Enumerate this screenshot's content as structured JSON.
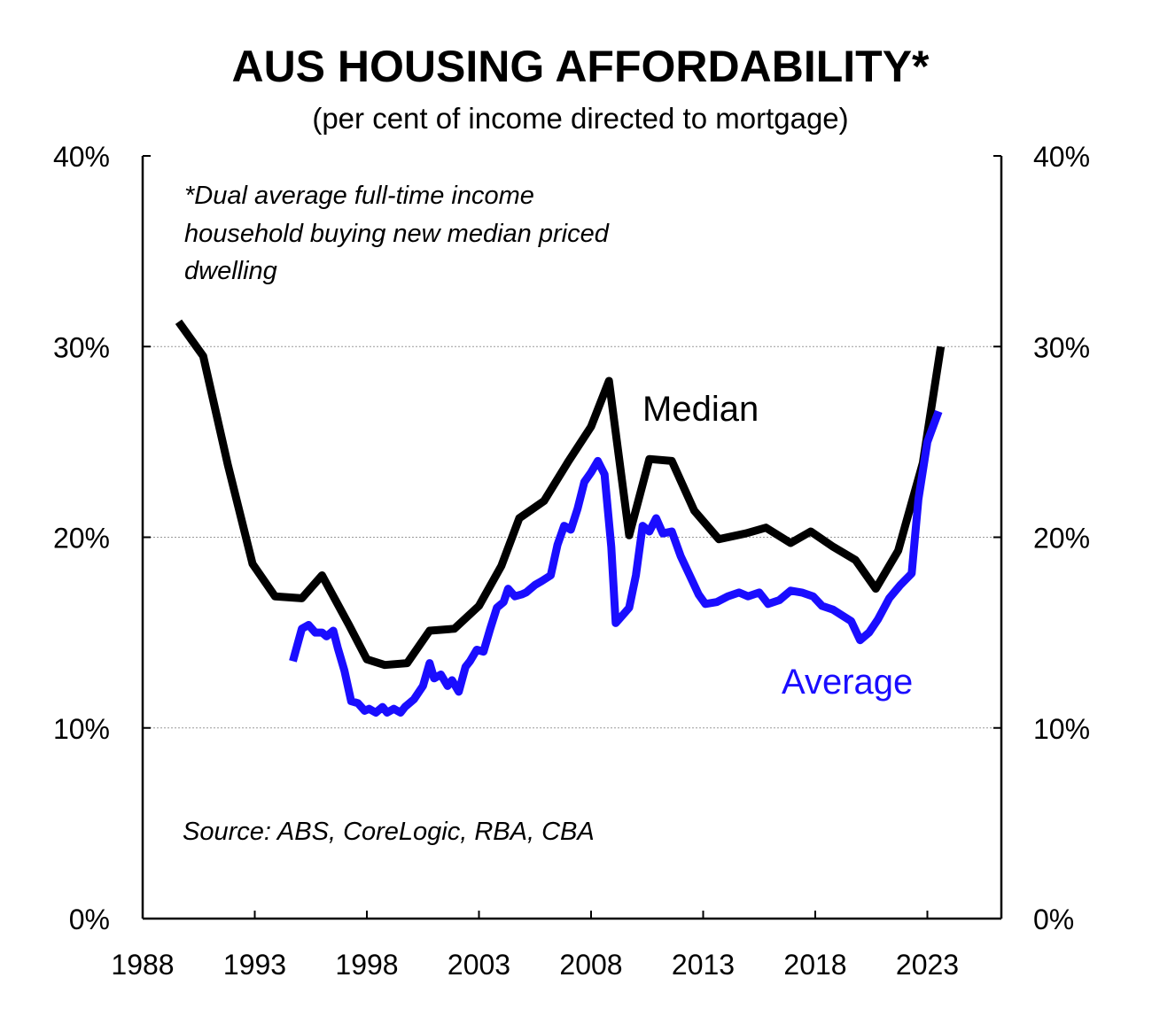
{
  "chart_data": {
    "type": "line",
    "title": "AUS HOUSING AFFORDABILITY*",
    "subtitle": "(per cent of income directed to mortgage)",
    "footnote": [
      "*Dual average full-time income",
      "household buying new median priced",
      "dwelling"
    ],
    "source": "Source: ABS, CoreLogic, RBA, CBA",
    "xlabel": "",
    "ylabel": "",
    "xlim": [
      1988,
      2026.3
    ],
    "ylim": [
      0,
      40
    ],
    "x_ticks": [
      1988,
      1993,
      1998,
      2003,
      2008,
      2013,
      2018,
      2023
    ],
    "x_tick_labels": [
      "1988",
      "1993",
      "1998",
      "2003",
      "2008",
      "2013",
      "2018",
      "2023"
    ],
    "y_ticks": [
      0,
      10,
      20,
      30,
      40
    ],
    "y_tick_labels": [
      "0%",
      "10%",
      "20%",
      "30%",
      "40%"
    ],
    "gridlines": [
      10,
      20,
      30
    ],
    "series": [
      {
        "name": "Median",
        "label": "Median",
        "color": "#000000",
        "x": [
          1989.6,
          1990.7,
          1991.8,
          1992.9,
          1993.9,
          1995.1,
          1996.0,
          1997.2,
          1998.0,
          1998.8,
          1999.8,
          2000.8,
          2001.9,
          2003.0,
          2004.0,
          2004.8,
          2005.9,
          2007.0,
          2008.0,
          2008.8,
          2009.7,
          2010.6,
          2011.6,
          2012.6,
          2013.7,
          2014.9,
          2015.8,
          2016.9,
          2017.8,
          2018.8,
          2019.8,
          2020.7,
          2021.7,
          2022.8,
          2023.6
        ],
        "values": [
          31.3,
          29.5,
          23.8,
          18.6,
          16.9,
          16.8,
          18.0,
          15.4,
          13.6,
          13.3,
          13.4,
          15.1,
          15.2,
          16.4,
          18.5,
          21.0,
          21.9,
          24.0,
          25.8,
          28.2,
          20.1,
          24.1,
          24.0,
          21.4,
          19.9,
          20.2,
          20.5,
          19.7,
          20.3,
          19.5,
          18.8,
          17.3,
          19.3,
          23.9,
          30.0
        ]
      },
      {
        "name": "Average",
        "label": "Average",
        "color": "#1a0dff",
        "x": [
          1994.7,
          1995.1,
          1995.4,
          1995.7,
          1996.0,
          1996.2,
          1996.5,
          1996.7,
          1997.0,
          1997.3,
          1997.6,
          1997.9,
          1998.1,
          1998.4,
          1998.7,
          1998.9,
          1999.2,
          1999.5,
          1999.7,
          2000.1,
          2000.5,
          2000.8,
          2001.0,
          2001.3,
          2001.6,
          2001.8,
          2002.1,
          2002.4,
          2002.6,
          2002.9,
          2003.2,
          2003.5,
          2003.8,
          2004.1,
          2004.3,
          2004.6,
          2004.9,
          2005.1,
          2005.5,
          2005.8,
          2006.2,
          2006.5,
          2006.8,
          2007.1,
          2007.4,
          2007.7,
          2008.0,
          2008.3,
          2008.6,
          2008.9,
          2009.1,
          2009.4,
          2009.7,
          2010.0,
          2010.3,
          2010.6,
          2010.9,
          2011.2,
          2011.6,
          2012.0,
          2012.4,
          2012.8,
          2013.1,
          2013.6,
          2014.1,
          2014.6,
          2015.0,
          2015.5,
          2015.9,
          2016.4,
          2016.9,
          2017.4,
          2017.9,
          2018.3,
          2018.8,
          2019.2,
          2019.6,
          2020.0,
          2020.4,
          2020.8,
          2021.3,
          2021.8,
          2022.3,
          2022.6,
          2023.0,
          2023.5
        ],
        "values": [
          13.5,
          15.2,
          15.4,
          15.0,
          15.0,
          14.8,
          15.1,
          14.2,
          13.0,
          11.4,
          11.3,
          10.9,
          11.0,
          10.8,
          11.1,
          10.8,
          11.0,
          10.8,
          11.1,
          11.5,
          12.2,
          13.4,
          12.6,
          12.8,
          12.2,
          12.5,
          11.9,
          13.2,
          13.5,
          14.1,
          14.0,
          15.2,
          16.3,
          16.6,
          17.3,
          16.9,
          17.0,
          17.1,
          17.5,
          17.7,
          18.0,
          19.6,
          20.6,
          20.4,
          21.5,
          22.9,
          23.4,
          24.0,
          23.3,
          19.5,
          15.5,
          15.9,
          16.3,
          18.0,
          20.6,
          20.3,
          21.0,
          20.2,
          20.3,
          19.0,
          18.0,
          17.0,
          16.5,
          16.6,
          16.9,
          17.1,
          16.9,
          17.1,
          16.5,
          16.7,
          17.2,
          17.1,
          16.9,
          16.4,
          16.2,
          15.9,
          15.6,
          14.6,
          15.0,
          15.7,
          16.8,
          17.5,
          18.1,
          22.0,
          25.0,
          26.6
        ]
      }
    ]
  }
}
